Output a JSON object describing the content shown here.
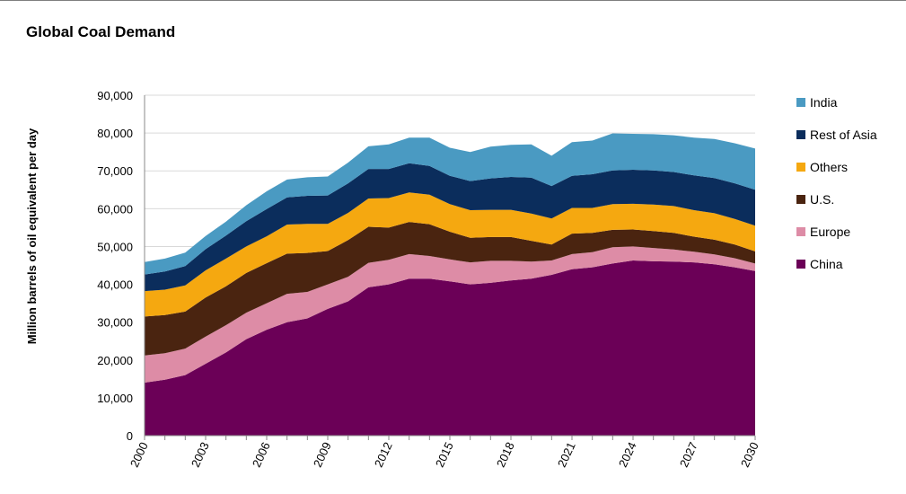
{
  "chart_data": {
    "type": "area",
    "stacked": true,
    "title": "Global Coal Demand",
    "xlabel": "",
    "ylabel": "Million barrels of oil equivalent per day",
    "x": [
      2000,
      2001,
      2002,
      2003,
      2004,
      2005,
      2006,
      2007,
      2008,
      2009,
      2010,
      2011,
      2012,
      2013,
      2014,
      2015,
      2016,
      2017,
      2018,
      2019,
      2020,
      2021,
      2022,
      2023,
      2024,
      2025,
      2026,
      2027,
      2028,
      2029,
      2030
    ],
    "xticks": [
      "2000",
      "2003",
      "2006",
      "2009",
      "2012",
      "2015",
      "2018",
      "2021",
      "2024",
      "2027",
      "2030"
    ],
    "xlim": [
      2000,
      2030
    ],
    "ylim": [
      0,
      90000
    ],
    "yticks": [
      "0",
      "10,000",
      "20,000",
      "30,000",
      "40,000",
      "50,000",
      "60,000",
      "70,000",
      "80,000",
      "90,000"
    ],
    "ytick_values": [
      0,
      10000,
      20000,
      30000,
      40000,
      50000,
      60000,
      70000,
      80000,
      90000
    ],
    "grid": true,
    "legend_position": "right",
    "series": [
      {
        "name": "China",
        "color": "#6b0057",
        "values": [
          14000,
          14800,
          16000,
          19000,
          22000,
          25500,
          28000,
          30000,
          31000,
          33500,
          35500,
          39200,
          40000,
          41500,
          41500,
          40800,
          40000,
          40400,
          41000,
          41500,
          42500,
          44000,
          44500,
          45500,
          46300,
          46100,
          46000,
          45800,
          45300,
          44500,
          43500
        ]
      },
      {
        "name": "Europe",
        "color": "#dd8ca6",
        "values": [
          7200,
          7000,
          7000,
          7200,
          7200,
          7000,
          7000,
          7500,
          7000,
          6500,
          6500,
          6500,
          6500,
          6500,
          6000,
          5800,
          5800,
          5800,
          5200,
          4500,
          3800,
          4000,
          4000,
          4300,
          3700,
          3500,
          3200,
          2800,
          2600,
          2400,
          2000
        ]
      },
      {
        "name": "U.S.",
        "color": "#4a2410",
        "values": [
          10300,
          10100,
          9800,
          10300,
          10300,
          10500,
          10600,
          10600,
          10300,
          8800,
          9700,
          9500,
          8500,
          8500,
          8400,
          7300,
          6500,
          6300,
          6300,
          5500,
          4200,
          5400,
          5100,
          4600,
          4500,
          4500,
          4400,
          4000,
          3900,
          3600,
          3200
        ]
      },
      {
        "name": "Others",
        "color": "#f5a810",
        "values": [
          6700,
          6700,
          6900,
          7200,
          7300,
          7000,
          7100,
          7700,
          7700,
          7200,
          7200,
          7500,
          7800,
          7800,
          7800,
          7300,
          7300,
          7200,
          7200,
          7200,
          6900,
          6800,
          6600,
          6800,
          6800,
          7000,
          7100,
          7000,
          7000,
          6800,
          6800
        ]
      },
      {
        "name": "Rest of Asia",
        "color": "#0b2d5c",
        "values": [
          4400,
          4800,
          5100,
          5600,
          6100,
          6700,
          7200,
          7200,
          7400,
          7500,
          7800,
          7800,
          7700,
          7700,
          7600,
          7500,
          7700,
          8300,
          8700,
          9500,
          8600,
          8500,
          8900,
          8900,
          9000,
          9000,
          9000,
          9200,
          9300,
          9400,
          9500
        ]
      },
      {
        "name": "India",
        "color": "#4a9ac2",
        "values": [
          3300,
          3400,
          3600,
          3500,
          3700,
          4200,
          4700,
          4700,
          4900,
          5000,
          5500,
          6000,
          6500,
          6800,
          7500,
          7400,
          7700,
          8400,
          8500,
          8800,
          8000,
          8900,
          8900,
          9800,
          9500,
          9600,
          9700,
          10000,
          10300,
          10600,
          10900
        ]
      }
    ]
  }
}
